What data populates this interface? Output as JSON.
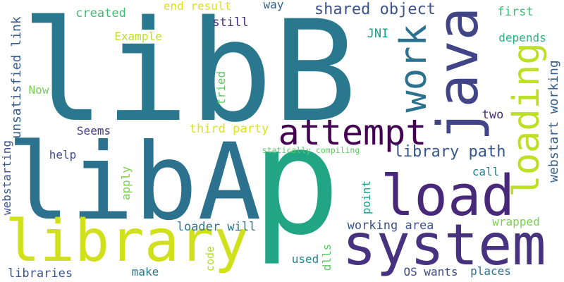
{
  "words": [
    {
      "text": "libB",
      "color": "#2a788e"
    },
    {
      "text": "p",
      "color": "#21a585"
    },
    {
      "text": "libA",
      "color": "#2c728e"
    },
    {
      "text": "library",
      "color": "#d0e11c"
    },
    {
      "text": "system",
      "color": "#46327e"
    },
    {
      "text": "load",
      "color": "#482878"
    },
    {
      "text": "attempt",
      "color": "#440154"
    },
    {
      "text": "shared object",
      "color": "#3b528b"
    },
    {
      "text": "library path",
      "color": "#39568c"
    },
    {
      "text": "third party",
      "color": "#dde318"
    },
    {
      "text": "created",
      "color": "#3fbc73"
    },
    {
      "text": "end result",
      "color": "#dde318"
    },
    {
      "text": "way",
      "color": "#33638d"
    },
    {
      "text": "still",
      "color": "#482878"
    },
    {
      "text": "Example",
      "color": "#bddf26"
    },
    {
      "text": "JNI",
      "color": "#1f9e89"
    },
    {
      "text": "first",
      "color": "#3fbc73"
    },
    {
      "text": "depends",
      "color": "#2db27d"
    },
    {
      "text": "Now",
      "color": "#7ad151"
    },
    {
      "text": "Seems",
      "color": "#443983"
    },
    {
      "text": "two",
      "color": "#472d7b"
    },
    {
      "text": "help",
      "color": "#3e4989"
    },
    {
      "text": "statically compiling",
      "color": "#5ec962"
    },
    {
      "text": "call",
      "color": "#26828e"
    },
    {
      "text": "loader will",
      "color": "#2a788e"
    },
    {
      "text": "working area",
      "color": "#3b528b"
    },
    {
      "text": "wrapped",
      "color": "#7ad151"
    },
    {
      "text": "used",
      "color": "#26828e"
    },
    {
      "text": "libraries",
      "color": "#3b528b"
    },
    {
      "text": "make",
      "color": "#2a788e"
    },
    {
      "text": "OS wants",
      "color": "#3e4989"
    },
    {
      "text": "places",
      "color": "#2c728e"
    },
    {
      "text": "java",
      "color": "#414487"
    },
    {
      "text": "work",
      "color": "#2c718e"
    },
    {
      "text": "loading",
      "color": "#bddf26"
    },
    {
      "text": "webstart working",
      "color": "#355f8d"
    },
    {
      "text": "unsatisfied link",
      "color": "#365c8d"
    },
    {
      "text": "webstarting",
      "color": "#3b528b"
    },
    {
      "text": "tried",
      "color": "#5ec962"
    },
    {
      "text": "apply",
      "color": "#7ad151"
    },
    {
      "text": "point",
      "color": "#1f9e89"
    },
    {
      "text": "code",
      "color": "#b5de2b"
    },
    {
      "text": "dlls",
      "color": "#5ec962"
    }
  ]
}
